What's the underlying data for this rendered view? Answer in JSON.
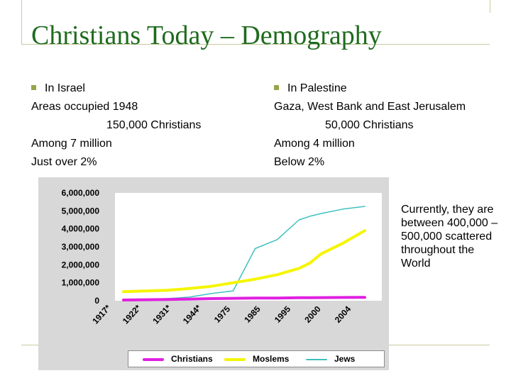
{
  "slide": {
    "title": "Christians Today – Demography",
    "left_column": {
      "heading": "In Israel",
      "lines": [
        "Areas occupied 1948",
        "150,000 Christians",
        "Among 7 million",
        "Just over 2%"
      ]
    },
    "right_column": {
      "heading": "In Palestine",
      "lines": [
        "Gaza, West Bank and East Jerusalem",
        "50,000 Christians",
        "Among 4 million",
        "Below 2%"
      ]
    },
    "side_note": "Currently, they are between 400,000 – 500,000 scattered throughout the World"
  },
  "chart_data": {
    "type": "line",
    "categories": [
      "1917*",
      "1922*",
      "1931*",
      "1944*",
      "1975",
      "1985",
      "1995",
      "2000",
      "2004"
    ],
    "x": [
      1,
      3,
      4,
      5,
      6,
      7,
      8,
      9,
      9.5,
      10,
      11,
      12
    ],
    "y_ticks": [
      "0",
      "1,000,000",
      "2,000,000",
      "3,000,000",
      "4,000,000",
      "5,000,000",
      "6,000,000"
    ],
    "ylim": [
      0,
      6000000
    ],
    "grid": false,
    "legend_position": "bottom",
    "series": [
      {
        "name": "Christians",
        "color": "#e020e0",
        "values": [
          40000,
          70000,
          90000,
          120000,
          135000,
          145000,
          150000,
          165000,
          170000,
          175000,
          180000,
          190000
        ]
      },
      {
        "name": "Moslems",
        "color": "#f5f500",
        "values": [
          500000,
          580000,
          680000,
          800000,
          1000000,
          1200000,
          1450000,
          1800000,
          2100000,
          2600000,
          3200000,
          3900000
        ]
      },
      {
        "name": "Jews",
        "color": "#3fc0c0",
        "values": [
          60000,
          120000,
          200000,
          400000,
          550000,
          2900000,
          3400000,
          4500000,
          4700000,
          4850000,
          5100000,
          5250000
        ]
      }
    ]
  }
}
